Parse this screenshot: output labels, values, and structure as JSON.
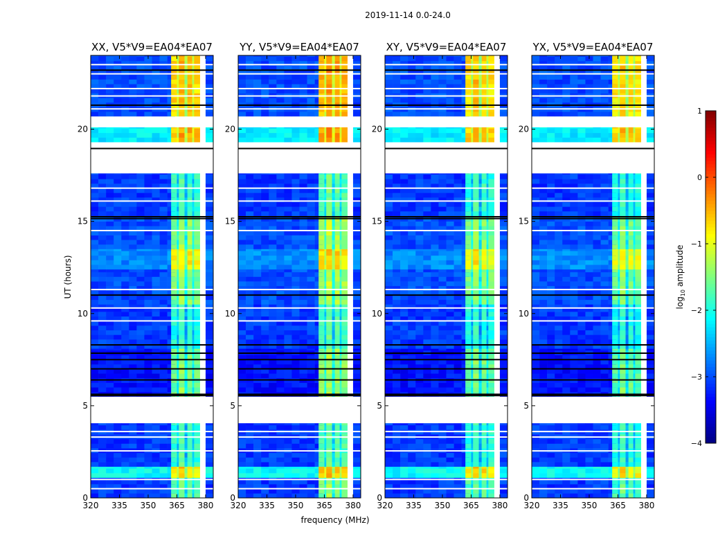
{
  "chart_data": {
    "type": "heatmap",
    "title": "2019-11-14 0.0-24.0",
    "xlabel": "frequency (MHz)",
    "ylabel": "UT (hours)",
    "xlim": [
      320,
      384
    ],
    "ylim": [
      0,
      24
    ],
    "xticks": [
      "320",
      "335",
      "350",
      "365",
      "380"
    ],
    "xtick_values": [
      320,
      335,
      350,
      365,
      380
    ],
    "yticks": [
      "0",
      "5",
      "10",
      "15",
      "20"
    ],
    "ytick_values": [
      0,
      5,
      10,
      15,
      20
    ],
    "colorbar": {
      "label_main": "log",
      "label_sub": "10",
      "label_rest": " amplitude",
      "vmin": -4,
      "vmax": 1,
      "ticks": [
        "1",
        "0",
        "−1",
        "−2",
        "−3",
        "−4"
      ],
      "tick_values": [
        1,
        0,
        -1,
        -2,
        -3,
        -4
      ],
      "colormap": "jet"
    },
    "panels": [
      {
        "title": "XX, V5*V9=EA04*EA07",
        "band_offset": 0.0
      },
      {
        "title": "YY, V5*V9=EA04*EA07",
        "band_offset": 0.15
      },
      {
        "title": "XY, V5*V9=EA04*EA07",
        "band_offset": -0.05
      },
      {
        "title": "YX, V5*V9=EA04*EA07",
        "band_offset": -0.1
      }
    ],
    "time_blocks": [
      {
        "t0": 0.0,
        "t1": 1.1,
        "background": -3.1,
        "band": -1.7
      },
      {
        "t0": 1.1,
        "t1": 1.7,
        "background": -2.1,
        "band": -0.8
      },
      {
        "t0": 1.7,
        "t1": 4.05,
        "background": -3.1,
        "band": -1.9
      },
      {
        "t0": 5.5,
        "t1": 8.1,
        "background": -3.3,
        "band": -1.6
      },
      {
        "t0": 8.1,
        "t1": 10.5,
        "background": -3.1,
        "band": -2.0
      },
      {
        "t0": 10.5,
        "t1": 12.4,
        "background": -3.0,
        "band": -1.5
      },
      {
        "t0": 12.4,
        "t1": 13.5,
        "background": -2.7,
        "band": -0.9
      },
      {
        "t0": 13.5,
        "t1": 15.3,
        "background": -3.0,
        "band": -1.5
      },
      {
        "t0": 15.3,
        "t1": 17.6,
        "background": -3.1,
        "band": -1.9
      },
      {
        "t0": 19.3,
        "t1": 20.1,
        "background": -2.2,
        "band": -0.6
      },
      {
        "t0": 20.7,
        "t1": 24.0,
        "background": -3.0,
        "band": -0.7
      }
    ],
    "band_columns": [
      {
        "f0": 362,
        "f1": 365,
        "delta": 0.0
      },
      {
        "f0": 365,
        "f1": 366,
        "delta": -0.5
      },
      {
        "f0": 366,
        "f1": 369,
        "delta": 0.2
      },
      {
        "f0": 369,
        "f1": 370.5,
        "delta": -0.6
      },
      {
        "f0": 370.5,
        "f1": 373,
        "delta": 0.1
      },
      {
        "f0": 373,
        "f1": 374,
        "delta": -0.5
      },
      {
        "f0": 374,
        "f1": 377,
        "delta": 0.0
      }
    ],
    "flag_lines_white": [
      0.5,
      1.0,
      2.55,
      3.3,
      3.6,
      9.6,
      10.3,
      11.3,
      14.5,
      16.1,
      16.8,
      21.1,
      21.8,
      22.2,
      23.0,
      23.5
    ],
    "flag_lines_black": [
      5.55,
      5.62,
      6.4,
      7.0,
      7.5,
      7.85,
      8.3,
      11.0,
      15.15,
      15.25,
      18.95,
      21.3,
      23.2
    ]
  }
}
